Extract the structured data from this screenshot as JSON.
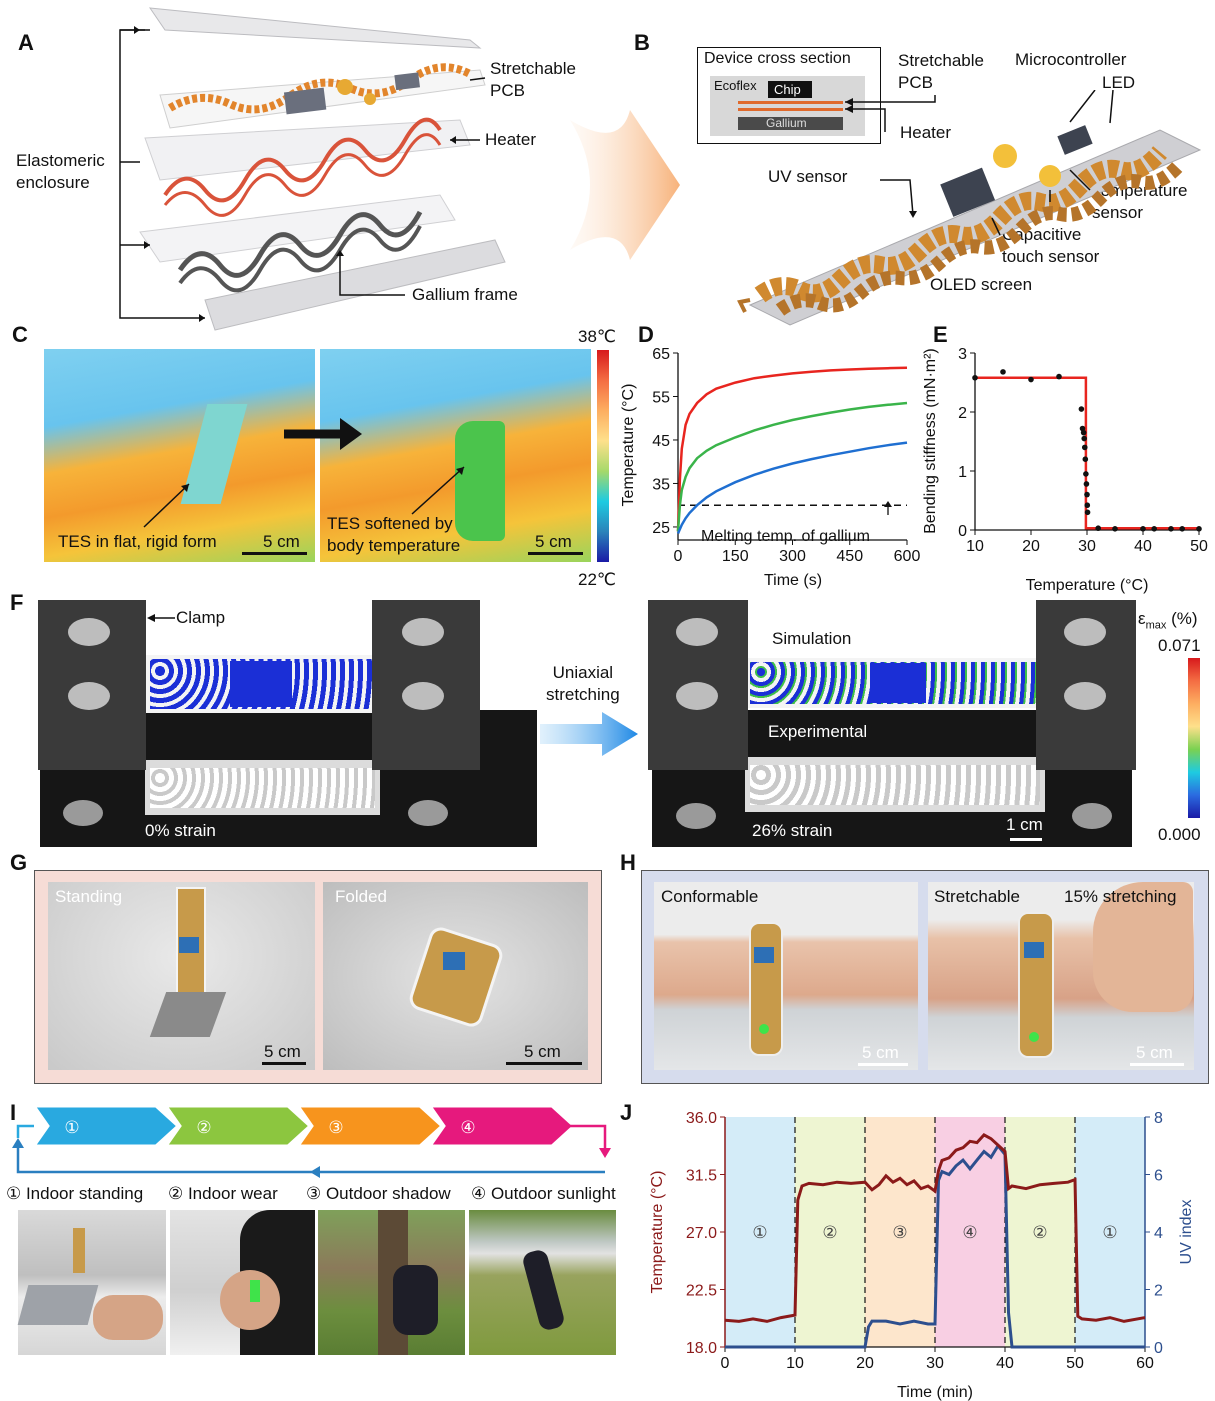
{
  "panels": {
    "A": {
      "label": "A",
      "layer_labels": {
        "stretchable_pcb": "Stretchable\nPCB",
        "heater": "Heater",
        "elastomeric_enclosure": "Elastomeric\nenclosure",
        "gallium_frame": "Gallium frame"
      }
    },
    "B": {
      "label": "B",
      "cross_section_title": "Device cross section",
      "cs_ecoflex": "Ecoflex",
      "cs_chip": "Chip",
      "cs_gallium": "Gallium",
      "stretchable_pcb": "Stretchable\nPCB",
      "heater": "Heater",
      "microcontroller": "Microcontroller",
      "led": "LED",
      "uv_sensor": "UV sensor",
      "temperature_sensor": "Temperature\nsensor",
      "capacitive_touch_sensor": "Capacitive\ntouch sensor",
      "oled_screen": "OLED screen"
    },
    "C": {
      "label": "C",
      "left_caption": "TES in flat, rigid form",
      "right_caption": "TES softened by\nbody temperature",
      "scale_left": "5 cm",
      "scale_right": "5 cm",
      "colorbar_max": "38℃",
      "colorbar_min": "22℃"
    },
    "D": {
      "label": "D",
      "annotation": "Melting temp. of gallium"
    },
    "E": {
      "label": "E"
    },
    "F": {
      "label": "F",
      "clamp": "Clamp",
      "uniaxial": "Uniaxial\nstretching",
      "simulation": "Simulation",
      "experimental": "Experimental",
      "strain_left": "0% strain",
      "strain_right": "26% strain",
      "scale": "1 cm",
      "colorbar_title": "ε",
      "colorbar_sub": "max",
      "colorbar_unit": " (%)",
      "colorbar_max": "0.071",
      "colorbar_min": "0.000"
    },
    "G": {
      "label": "G",
      "left": "Standing",
      "right": "Folded",
      "scale_left": "5 cm",
      "scale_right": "5 cm"
    },
    "H": {
      "label": "H",
      "left": "Conformable",
      "right": "Stretchable",
      "right2": "15% stretching",
      "scale_left": "5 cm",
      "scale_right": "5 cm"
    },
    "I": {
      "label": "I",
      "steps": [
        "①",
        "②",
        "③",
        "④"
      ],
      "captions": [
        "① Indoor standing",
        "② Indoor wear",
        "③ Outdoor shadow",
        "④ Outdoor sunlight"
      ],
      "colors": [
        "#29a9e0",
        "#8cc63f",
        "#f7941d",
        "#e6197d"
      ]
    },
    "J": {
      "label": "J",
      "region_labels": [
        "①",
        "②",
        "③",
        "④",
        "②",
        "①"
      ]
    }
  },
  "chart_data": [
    {
      "panel": "D",
      "type": "line",
      "xlabel": "Time (s)",
      "ylabel": "Temperature (°C)",
      "xlim": [
        0,
        600
      ],
      "ylim": [
        22,
        65
      ],
      "xticks": [
        0,
        150,
        300,
        450,
        600
      ],
      "yticks": [
        25,
        35,
        45,
        55,
        65
      ],
      "reference_line": {
        "y": 30,
        "style": "dashed"
      },
      "series": [
        {
          "color": "#e8251f",
          "x": [
            0,
            5,
            10,
            20,
            30,
            50,
            75,
            100,
            150,
            200,
            250,
            300,
            350,
            400,
            450,
            500,
            550,
            600
          ],
          "y": [
            24,
            36,
            43,
            48.5,
            51,
            53.5,
            55.5,
            56.8,
            58.2,
            59.2,
            59.8,
            60.3,
            60.7,
            61.0,
            61.2,
            61.4,
            61.5,
            61.6
          ]
        },
        {
          "color": "#3ab44a",
          "x": [
            0,
            5,
            10,
            20,
            30,
            50,
            75,
            100,
            150,
            200,
            250,
            300,
            350,
            400,
            450,
            500,
            550,
            600
          ],
          "y": [
            24,
            30,
            33.5,
            36.5,
            38.5,
            40.8,
            42.5,
            43.8,
            45.6,
            47.2,
            48.5,
            49.6,
            50.5,
            51.3,
            52,
            52.6,
            53.1,
            53.5
          ]
        },
        {
          "color": "#1f6fd1",
          "x": [
            0,
            10,
            20,
            30,
            50,
            75,
            100,
            150,
            200,
            250,
            300,
            350,
            400,
            450,
            500,
            550,
            600
          ],
          "y": [
            23.5,
            25.5,
            27,
            28.2,
            30,
            31.8,
            33.2,
            35.3,
            37,
            38.4,
            39.6,
            40.6,
            41.5,
            42.3,
            43.1,
            43.8,
            44.4
          ]
        }
      ]
    },
    {
      "panel": "E",
      "type": "scatter",
      "xlabel": "Temperature (°C)",
      "ylabel": "Bending stiffness (mN·m²)",
      "xlim": [
        10,
        50
      ],
      "ylim": [
        0,
        3
      ],
      "xticks": [
        10,
        20,
        30,
        40,
        50
      ],
      "yticks": [
        0,
        1,
        2,
        3
      ],
      "points": [
        [
          10,
          2.58
        ],
        [
          15,
          2.68
        ],
        [
          20,
          2.55
        ],
        [
          25,
          2.6
        ],
        [
          29,
          2.05
        ],
        [
          29.2,
          1.72
        ],
        [
          29.4,
          1.65
        ],
        [
          29.5,
          1.55
        ],
        [
          29.6,
          1.4
        ],
        [
          29.7,
          1.2
        ],
        [
          29.8,
          0.95
        ],
        [
          29.9,
          0.78
        ],
        [
          30,
          0.6
        ],
        [
          30.05,
          0.42
        ],
        [
          30.1,
          0.3
        ],
        [
          32,
          0.03
        ],
        [
          35,
          0.02
        ],
        [
          40,
          0.02
        ],
        [
          42,
          0.02
        ],
        [
          45,
          0.02
        ],
        [
          47,
          0.02
        ],
        [
          50,
          0.02
        ]
      ],
      "fit": {
        "color": "#e8251f",
        "x": [
          10,
          29.8,
          29.8,
          50
        ],
        "y": [
          2.58,
          2.58,
          0.03,
          0.03
        ]
      }
    },
    {
      "panel": "J",
      "type": "line",
      "xlabel": "Time (min)",
      "ylabel": "Temperature (°C)",
      "y2label": "UV index",
      "xlim": [
        0,
        60
      ],
      "ylim": [
        18,
        36
      ],
      "y2lim": [
        0,
        8
      ],
      "xticks": [
        0,
        10,
        20,
        30,
        40,
        50,
        60
      ],
      "yticks": [
        18.0,
        22.5,
        27.0,
        31.5,
        36.0
      ],
      "y2ticks": [
        0,
        2,
        4,
        6,
        8
      ],
      "regions": [
        {
          "x": [
            0,
            10
          ],
          "color": "#d4ecf8"
        },
        {
          "x": [
            10,
            20
          ],
          "color": "#eef5d2"
        },
        {
          "x": [
            20,
            30
          ],
          "color": "#fde6cc"
        },
        {
          "x": [
            30,
            40
          ],
          "color": "#f8cfe3"
        },
        {
          "x": [
            40,
            50
          ],
          "color": "#eef5d2"
        },
        {
          "x": [
            50,
            60
          ],
          "color": "#d4ecf8"
        }
      ],
      "series": [
        {
          "name": "Temperature",
          "axis": "left",
          "color": "#8b1a1a",
          "x": [
            0,
            2,
            4,
            6,
            8,
            10,
            10.4,
            11,
            12,
            14,
            16,
            18,
            20,
            21,
            22,
            23,
            24,
            25,
            26,
            27,
            28,
            29,
            30,
            30.5,
            31,
            32,
            33,
            34,
            35,
            36,
            37,
            38,
            39,
            40,
            40.5,
            41,
            43,
            45,
            47,
            49,
            50,
            50.4,
            51,
            53,
            55,
            57,
            60
          ],
          "y": [
            20.1,
            20.0,
            20.2,
            20.0,
            20.3,
            20.5,
            29.5,
            30.6,
            30.8,
            30.7,
            30.9,
            30.8,
            30.9,
            30.3,
            30.7,
            31.4,
            30.9,
            31.2,
            30.7,
            31.0,
            30.4,
            30.6,
            30.2,
            31.8,
            32.6,
            32.8,
            33.4,
            33.6,
            34.1,
            34.0,
            34.6,
            34.3,
            33.8,
            33.3,
            30.4,
            30.6,
            30.4,
            30.7,
            30.8,
            30.9,
            31.1,
            20.4,
            20.2,
            20.1,
            20.3,
            20.0,
            20.3
          ]
        },
        {
          "name": "UV index",
          "axis": "right",
          "color": "#2d4f8e",
          "x": [
            0,
            10,
            20,
            20.5,
            21,
            23,
            25,
            27,
            29,
            30,
            30.5,
            31,
            32,
            33,
            34,
            35,
            36,
            37,
            38,
            39,
            40,
            40.5,
            41,
            50,
            60
          ],
          "y": [
            0,
            0,
            0,
            0.7,
            0.9,
            0.9,
            0.8,
            0.9,
            0.8,
            0.8,
            5.8,
            6.1,
            6.0,
            6.3,
            6.5,
            6.2,
            6.5,
            6.8,
            6.6,
            7.0,
            6.7,
            1.2,
            0,
            0,
            0
          ]
        }
      ]
    }
  ]
}
